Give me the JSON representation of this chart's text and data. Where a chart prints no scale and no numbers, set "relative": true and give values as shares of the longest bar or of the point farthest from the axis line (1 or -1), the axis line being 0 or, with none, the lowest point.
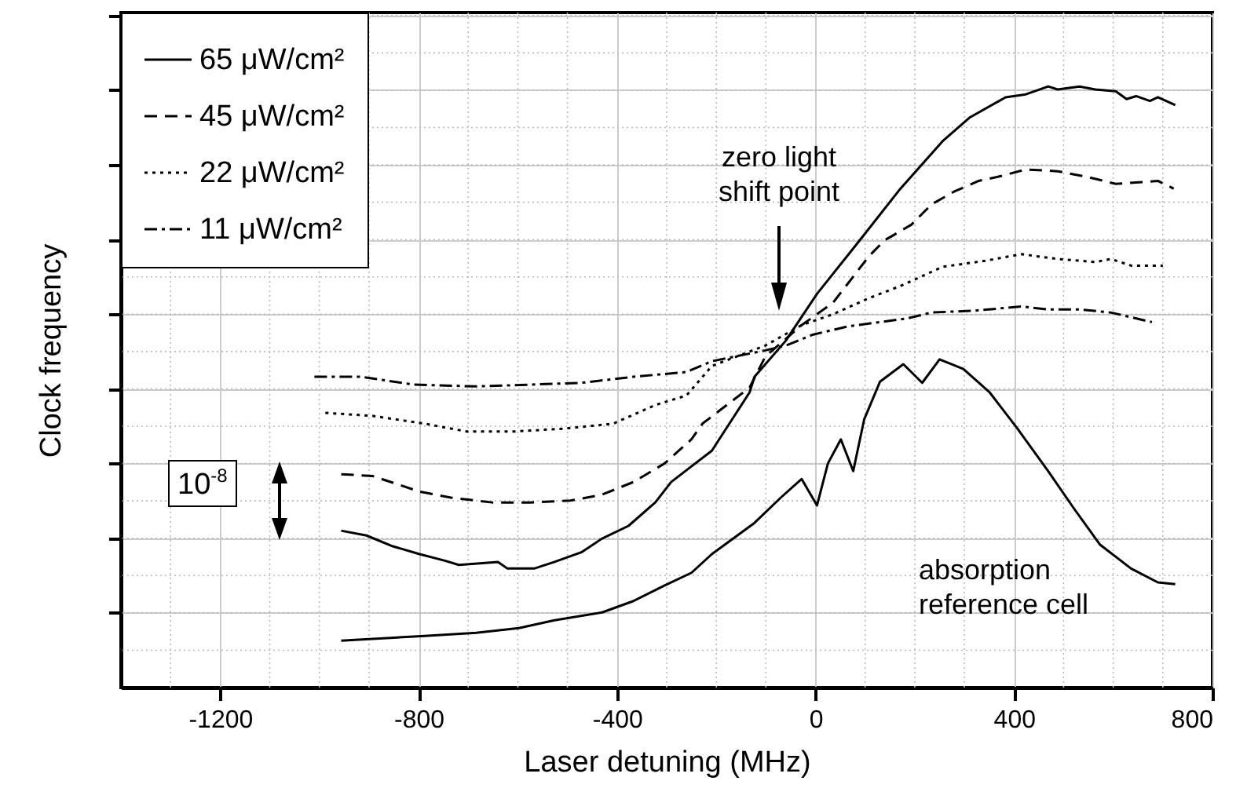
{
  "chart_data": {
    "type": "line",
    "relative": true,
    "xlabel": "Laser detuning (MHz)",
    "ylabel": "Clock frequency",
    "xlim": [
      -1400,
      800
    ],
    "xticks": [
      -1200,
      -800,
      -400,
      0,
      400,
      800
    ],
    "grid": true,
    "legend": "top left",
    "annotations": [
      "zero light shift point",
      "absorption reference cell",
      "10$^{-8}$"
    ],
    "series": [
      {
        "name": "65 μW/cm²",
        "color": "#000000",
        "line_style": "solid",
        "x": [
          -956,
          -905,
          -852,
          -798,
          -747,
          -719,
          -640,
          -621,
          -567,
          -526,
          -472,
          -430,
          -377,
          -323,
          -291,
          -250,
          -209,
          -133,
          -123,
          -60,
          3,
          89,
          171,
          256,
          310,
          383,
          424,
          469,
          488,
          532,
          564,
          605,
          627,
          646,
          674,
          690,
          725
        ],
        "values": [
          0.261,
          0.253,
          0.235,
          0.222,
          0.211,
          0.204,
          0.209,
          0.198,
          0.198,
          0.209,
          0.225,
          0.248,
          0.269,
          0.308,
          0.342,
          0.368,
          0.394,
          0.491,
          0.517,
          0.577,
          0.655,
          0.744,
          0.83,
          0.909,
          0.948,
          0.982,
          0.987,
          1.0,
          0.995,
          1.0,
          0.995,
          0.992,
          0.979,
          0.984,
          0.976,
          0.982,
          0.969
        ]
      },
      {
        "name": "45 μW/cm²",
        "color": "#000000",
        "line_style": "dashed",
        "x": [
          -956,
          -893,
          -798,
          -735,
          -652,
          -576,
          -494,
          -430,
          -367,
          -304,
          -250,
          -228,
          -133,
          -101,
          -28,
          35,
          108,
          139,
          193,
          234,
          279,
          329,
          374,
          424,
          488,
          551,
          605,
          658,
          690,
          722
        ],
        "values": [
          0.355,
          0.352,
          0.326,
          0.316,
          0.308,
          0.308,
          0.311,
          0.321,
          0.342,
          0.373,
          0.413,
          0.439,
          0.499,
          0.551,
          0.603,
          0.64,
          0.718,
          0.744,
          0.77,
          0.804,
          0.825,
          0.843,
          0.851,
          0.862,
          0.859,
          0.849,
          0.838,
          0.841,
          0.843,
          0.83
        ]
      },
      {
        "name": "22 μW/cm²",
        "color": "#000000",
        "line_style": "dotted",
        "x": [
          -988,
          -893,
          -788,
          -703,
          -608,
          -503,
          -408,
          -323,
          -260,
          -209,
          -101,
          -28,
          35,
          108,
          171,
          256,
          342,
          415,
          488,
          564,
          595,
          636,
          700
        ],
        "values": [
          0.457,
          0.452,
          0.439,
          0.426,
          0.426,
          0.431,
          0.439,
          0.47,
          0.486,
          0.535,
          0.569,
          0.603,
          0.621,
          0.648,
          0.668,
          0.7,
          0.71,
          0.721,
          0.713,
          0.708,
          0.713,
          0.702,
          0.702
        ]
      },
      {
        "name": "11 μW/cm²",
        "color": "#000000",
        "line_style": "dashdot",
        "x": [
          -1010,
          -915,
          -810,
          -684,
          -576,
          -472,
          -367,
          -260,
          -209,
          -101,
          -60,
          -6,
          66,
          130,
          184,
          234,
          320,
          415,
          469,
          532,
          595,
          678
        ],
        "values": [
          0.517,
          0.517,
          0.504,
          0.501,
          0.504,
          0.507,
          0.517,
          0.525,
          0.543,
          0.561,
          0.569,
          0.587,
          0.601,
          0.608,
          0.614,
          0.624,
          0.627,
          0.634,
          0.629,
          0.629,
          0.624,
          0.608
        ]
      },
      {
        "color": "#000000",
        "line_style": "solid",
        "x": [
          -956,
          -788,
          -684,
          -598,
          -526,
          -430,
          -367,
          -304,
          -250,
          -209,
          -123,
          -70,
          -28,
          3,
          25,
          51,
          76,
          98,
          130,
          177,
          215,
          250,
          298,
          351,
          405,
          469,
          519,
          573,
          636,
          690,
          725
        ],
        "values": [
          0.078,
          0.086,
          0.091,
          0.099,
          0.112,
          0.125,
          0.144,
          0.17,
          0.191,
          0.222,
          0.274,
          0.316,
          0.347,
          0.303,
          0.373,
          0.413,
          0.36,
          0.446,
          0.509,
          0.538,
          0.507,
          0.546,
          0.53,
          0.491,
          0.433,
          0.36,
          0.3,
          0.238,
          0.198,
          0.175,
          0.172
        ]
      }
    ]
  }
}
